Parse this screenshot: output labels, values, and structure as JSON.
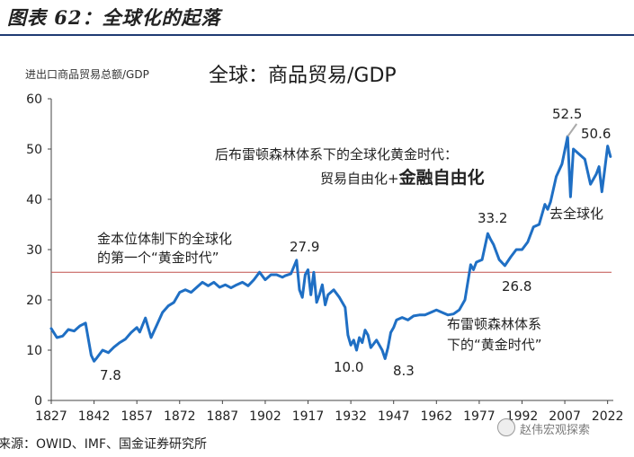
{
  "figure_title": "图表 62：全球化的起落",
  "source": "来源：OWID、IMF、国金证券研究所",
  "watermark": "赵伟宏观探索",
  "chart_data": {
    "type": "line",
    "title": "全球：商品贸易/GDP",
    "ylabel": "进出口商品贸易总额/GDP",
    "xlabel": "",
    "ylim": [
      0,
      60
    ],
    "yticks": [
      0,
      10,
      20,
      30,
      40,
      50,
      60
    ],
    "xlim": [
      1827,
      2024
    ],
    "xticks": [
      1827,
      1842,
      1857,
      1872,
      1887,
      1902,
      1917,
      1932,
      1947,
      1962,
      1977,
      1992,
      2007,
      2022
    ],
    "reference_line": 25.5,
    "grid": false,
    "colors": {
      "line": "#1f6fc4",
      "reference": "#c0504d",
      "callout": "#aaaaaa"
    },
    "series": [
      {
        "x": [
          1827,
          1829,
          1831,
          1833,
          1835,
          1837,
          1839,
          1841,
          1842,
          1843,
          1845,
          1847,
          1849,
          1851,
          1853,
          1855,
          1857,
          1858,
          1860,
          1862,
          1864,
          1866,
          1868,
          1870,
          1872,
          1874,
          1876,
          1878,
          1880,
          1882,
          1884,
          1886,
          1888,
          1890,
          1892,
          1894,
          1896,
          1898,
          1900,
          1902,
          1904,
          1906,
          1908,
          1909,
          1911,
          1913,
          1914,
          1915,
          1916,
          1917,
          1918,
          1919,
          1920,
          1921,
          1922,
          1923,
          1924,
          1926,
          1928,
          1930,
          1931,
          1932,
          1933,
          1934,
          1935,
          1936,
          1937,
          1938,
          1939,
          1941,
          1943,
          1944,
          1945,
          1946,
          1947,
          1948,
          1950,
          1952,
          1954,
          1956,
          1958,
          1960,
          1962,
          1964,
          1966,
          1968,
          1970,
          1972,
          1974,
          1975,
          1976,
          1978,
          1980,
          1981,
          1982,
          1984,
          1986,
          1988,
          1990,
          1992,
          1994,
          1996,
          1998,
          2000,
          2001,
          2002,
          2004,
          2006,
          2008,
          2009,
          2010,
          2012,
          2014,
          2016,
          2018,
          2019,
          2020,
          2021,
          2022,
          2023
        ],
        "values": [
          14.3,
          12.5,
          12.8,
          14.1,
          13.8,
          14.8,
          15.4,
          9.0,
          7.8,
          8.5,
          10.0,
          9.5,
          10.6,
          11.5,
          12.2,
          13.5,
          14.5,
          13.6,
          16.4,
          12.5,
          15.0,
          17.5,
          18.8,
          19.5,
          21.5,
          22.0,
          21.5,
          22.5,
          23.5,
          22.8,
          23.5,
          22.5,
          23.0,
          22.4,
          23.0,
          23.5,
          22.8,
          24.0,
          25.5,
          24.0,
          25.0,
          25.0,
          24.5,
          24.8,
          25.2,
          27.9,
          22.0,
          20.5,
          25.0,
          26.0,
          21.0,
          25.5,
          19.5,
          21.0,
          23.0,
          19.0,
          21.0,
          22.0,
          20.5,
          18.5,
          13.0,
          11.0,
          12.0,
          10.0,
          12.5,
          11.5,
          14.0,
          13.0,
          10.5,
          12.0,
          10.0,
          8.3,
          10.5,
          13.5,
          14.5,
          16.0,
          16.5,
          16.0,
          16.8,
          17.0,
          17.0,
          17.5,
          18.0,
          17.5,
          17.0,
          17.2,
          18.0,
          20.0,
          27.0,
          26.0,
          27.5,
          28.0,
          33.2,
          32.0,
          31.0,
          28.0,
          26.8,
          28.5,
          30.0,
          30.0,
          31.5,
          34.5,
          35.0,
          39.0,
          38.0,
          39.5,
          44.5,
          47.0,
          52.5,
          40.5,
          50.0,
          49.0,
          48.0,
          43.0,
          45.0,
          46.5,
          41.5,
          46.0,
          50.6,
          48.5
        ]
      }
    ],
    "annotations": {
      "peak_1913": "27.9",
      "low_1842": "7.8",
      "low_1932": "10.0",
      "low_1944": "8.3",
      "value_1980": "33.2",
      "value_1988": "26.8",
      "peak_2008": "52.5",
      "value_2022": "50.6",
      "gold_standard_line1": "金本位体制下的全球化",
      "gold_standard_line2": "的第一个“黄金时代”",
      "bretton_woods_line1": "布雷顿森林体系",
      "bretton_woods_line2": "下的“黄金时代”",
      "post_bw_line1": "后布雷顿森林体系下的全球化黄金时代：",
      "post_bw_line2_a": "贸易自由化+",
      "post_bw_line2_b": "金融自由化",
      "deglobalization": "去全球化"
    }
  }
}
